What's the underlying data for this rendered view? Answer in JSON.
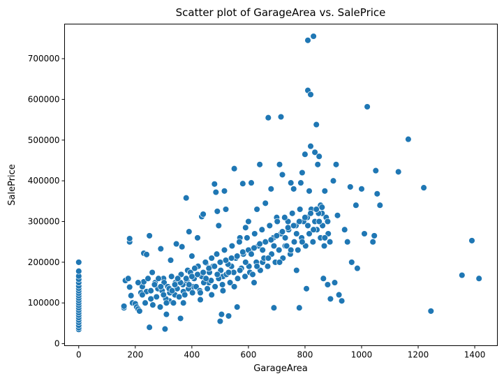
{
  "chart_data": {
    "type": "scatter",
    "title": "Scatter plot of GarageArea vs. SalePrice",
    "xlabel": "GarageArea",
    "ylabel": "SalePrice",
    "xlim": [
      -50,
      1480
    ],
    "ylim": [
      -5000,
      785000
    ],
    "xticks": [
      0,
      200,
      400,
      600,
      800,
      1000,
      1200,
      1400
    ],
    "xtick_labels": [
      "0",
      "200",
      "400",
      "600",
      "800",
      "1000",
      "1200",
      "1400"
    ],
    "yticks": [
      0,
      100000,
      200000,
      300000,
      400000,
      500000,
      600000,
      700000
    ],
    "ytick_labels": [
      "0",
      "100000",
      "200000",
      "300000",
      "400000",
      "500000",
      "600000",
      "700000"
    ],
    "grid": false,
    "marker_color": "#1f77b4",
    "marker_edge_color": "#ffffff",
    "points": [
      [
        0,
        35000
      ],
      [
        0,
        39000
      ],
      [
        0,
        45000
      ],
      [
        0,
        52000
      ],
      [
        0,
        58000
      ],
      [
        0,
        64000
      ],
      [
        0,
        70000
      ],
      [
        0,
        76000
      ],
      [
        0,
        82000
      ],
      [
        0,
        88000
      ],
      [
        0,
        94000
      ],
      [
        0,
        100000
      ],
      [
        0,
        106000
      ],
      [
        0,
        112000
      ],
      [
        0,
        118000
      ],
      [
        0,
        124000
      ],
      [
        0,
        130000
      ],
      [
        0,
        136000
      ],
      [
        0,
        142000
      ],
      [
        0,
        150000
      ],
      [
        0,
        158000
      ],
      [
        0,
        166000
      ],
      [
        0,
        178000
      ],
      [
        0,
        200000
      ],
      [
        160,
        88000
      ],
      [
        160,
        92000
      ],
      [
        165,
        155000
      ],
      [
        175,
        160000
      ],
      [
        180,
        250000
      ],
      [
        180,
        258000
      ],
      [
        180,
        139000
      ],
      [
        185,
        118000
      ],
      [
        190,
        100000
      ],
      [
        200,
        98000
      ],
      [
        205,
        90000
      ],
      [
        210,
        85000
      ],
      [
        215,
        80000
      ],
      [
        220,
        125000
      ],
      [
        225,
        140000
      ],
      [
        230,
        152000
      ],
      [
        230,
        222000
      ],
      [
        240,
        219000
      ],
      [
        240,
        128000
      ],
      [
        250,
        265000
      ],
      [
        250,
        40000
      ],
      [
        255,
        110000
      ],
      [
        260,
        175000
      ],
      [
        270,
        150000
      ],
      [
        280,
        135000
      ],
      [
        290,
        233000
      ],
      [
        300,
        160000
      ],
      [
        305,
        36000
      ],
      [
        310,
        72000
      ],
      [
        320,
        105000
      ],
      [
        325,
        205000
      ],
      [
        340,
        120000
      ],
      [
        345,
        245000
      ],
      [
        360,
        62000
      ],
      [
        365,
        238000
      ],
      [
        370,
        128000
      ],
      [
        380,
        358000
      ],
      [
        385,
        180000
      ],
      [
        390,
        275000
      ],
      [
        400,
        215000
      ],
      [
        405,
        140000
      ],
      [
        420,
        260000
      ],
      [
        430,
        108000
      ],
      [
        435,
        312000
      ],
      [
        440,
        318000
      ],
      [
        450,
        198000
      ],
      [
        460,
        150000
      ],
      [
        470,
        210000
      ],
      [
        480,
        392000
      ],
      [
        485,
        372000
      ],
      [
        490,
        325000
      ],
      [
        495,
        290000
      ],
      [
        500,
        55000
      ],
      [
        505,
        72000
      ],
      [
        510,
        165000
      ],
      [
        515,
        375000
      ],
      [
        520,
        330000
      ],
      [
        530,
        68000
      ],
      [
        540,
        190000
      ],
      [
        550,
        430000
      ],
      [
        560,
        90000
      ],
      [
        570,
        260000
      ],
      [
        580,
        393000
      ],
      [
        590,
        285000
      ],
      [
        600,
        300000
      ],
      [
        605,
        175000
      ],
      [
        610,
        395000
      ],
      [
        620,
        150000
      ],
      [
        630,
        330000
      ],
      [
        640,
        440000
      ],
      [
        650,
        200000
      ],
      [
        660,
        345000
      ],
      [
        670,
        555000
      ],
      [
        680,
        380000
      ],
      [
        690,
        88000
      ],
      [
        700,
        310000
      ],
      [
        710,
        440000
      ],
      [
        715,
        557000
      ],
      [
        720,
        415000
      ],
      [
        730,
        240000
      ],
      [
        740,
        300000
      ],
      [
        750,
        395000
      ],
      [
        760,
        380000
      ],
      [
        770,
        180000
      ],
      [
        780,
        88000
      ],
      [
        785,
        395000
      ],
      [
        790,
        420000
      ],
      [
        800,
        465000
      ],
      [
        805,
        135000
      ],
      [
        810,
        745000
      ],
      [
        810,
        622000
      ],
      [
        815,
        375000
      ],
      [
        820,
        485000
      ],
      [
        820,
        612000
      ],
      [
        830,
        755000
      ],
      [
        835,
        470000
      ],
      [
        840,
        538000
      ],
      [
        845,
        440000
      ],
      [
        850,
        460000
      ],
      [
        855,
        340000
      ],
      [
        860,
        320000
      ],
      [
        865,
        160000
      ],
      [
        870,
        375000
      ],
      [
        880,
        145000
      ],
      [
        890,
        110000
      ],
      [
        900,
        400000
      ],
      [
        905,
        150000
      ],
      [
        910,
        440000
      ],
      [
        915,
        315000
      ],
      [
        920,
        120000
      ],
      [
        930,
        105000
      ],
      [
        940,
        280000
      ],
      [
        950,
        250000
      ],
      [
        960,
        385000
      ],
      [
        965,
        200000
      ],
      [
        980,
        340000
      ],
      [
        985,
        185000
      ],
      [
        1000,
        380000
      ],
      [
        1010,
        270000
      ],
      [
        1020,
        582000
      ],
      [
        1040,
        250000
      ],
      [
        1045,
        265000
      ],
      [
        1050,
        425000
      ],
      [
        1055,
        368000
      ],
      [
        1065,
        340000
      ],
      [
        1130,
        422000
      ],
      [
        1165,
        502000
      ],
      [
        1220,
        383000
      ],
      [
        1245,
        80000
      ],
      [
        1355,
        168000
      ],
      [
        1390,
        253000
      ],
      [
        1415,
        160000
      ],
      [
        210,
        150000
      ],
      [
        225,
        120000
      ],
      [
        235,
        100000
      ],
      [
        245,
        160000
      ],
      [
        255,
        130000
      ],
      [
        262,
        95000
      ],
      [
        268,
        145000
      ],
      [
        275,
        115000
      ],
      [
        282,
        160000
      ],
      [
        288,
        90000
      ],
      [
        295,
        130000
      ],
      [
        302,
        150000
      ],
      [
        308,
        110000
      ],
      [
        315,
        140000
      ],
      [
        322,
        125000
      ],
      [
        328,
        165000
      ],
      [
        335,
        100000
      ],
      [
        342,
        150000
      ],
      [
        348,
        135000
      ],
      [
        355,
        115000
      ],
      [
        362,
        170000
      ],
      [
        368,
        145000
      ],
      [
        375,
        120000
      ],
      [
        382,
        155000
      ],
      [
        388,
        135000
      ],
      [
        395,
        175000
      ],
      [
        402,
        125000
      ],
      [
        408,
        160000
      ],
      [
        415,
        140000
      ],
      [
        422,
        190000
      ],
      [
        428,
        130000
      ],
      [
        435,
        165000
      ],
      [
        442,
        150000
      ],
      [
        448,
        200000
      ],
      [
        455,
        135000
      ],
      [
        462,
        175000
      ],
      [
        468,
        155000
      ],
      [
        475,
        190000
      ],
      [
        482,
        140000
      ],
      [
        488,
        220000
      ],
      [
        495,
        160000
      ],
      [
        502,
        180000
      ],
      [
        508,
        145000
      ],
      [
        515,
        230000
      ],
      [
        522,
        170000
      ],
      [
        528,
        195000
      ],
      [
        535,
        150000
      ],
      [
        542,
        240000
      ],
      [
        548,
        175000
      ],
      [
        555,
        210000
      ],
      [
        562,
        160000
      ],
      [
        568,
        250000
      ],
      [
        575,
        185000
      ],
      [
        582,
        220000
      ],
      [
        588,
        165000
      ],
      [
        595,
        260000
      ],
      [
        602,
        190000
      ],
      [
        608,
        230000
      ],
      [
        615,
        170000
      ],
      [
        622,
        270000
      ],
      [
        628,
        200000
      ],
      [
        635,
        240000
      ],
      [
        642,
        180000
      ],
      [
        648,
        280000
      ],
      [
        655,
        210000
      ],
      [
        662,
        250000
      ],
      [
        668,
        190000
      ],
      [
        675,
        290000
      ],
      [
        682,
        220000
      ],
      [
        688,
        260000
      ],
      [
        695,
        200000
      ],
      [
        702,
        300000
      ],
      [
        708,
        230000
      ],
      [
        715,
        270000
      ],
      [
        722,
        210000
      ],
      [
        728,
        310000
      ],
      [
        735,
        240000
      ],
      [
        742,
        280000
      ],
      [
        748,
        220000
      ],
      [
        755,
        320000
      ],
      [
        762,
        250000
      ],
      [
        768,
        290000
      ],
      [
        775,
        230000
      ],
      [
        782,
        330000
      ],
      [
        788,
        260000
      ],
      [
        795,
        300000
      ],
      [
        802,
        240000
      ],
      [
        808,
        310000
      ],
      [
        815,
        270000
      ],
      [
        822,
        330000
      ],
      [
        828,
        250000
      ],
      [
        835,
        300000
      ],
      [
        842,
        280000
      ],
      [
        848,
        320000
      ],
      [
        855,
        260000
      ],
      [
        862,
        290000
      ],
      [
        868,
        240000
      ],
      [
        875,
        310000
      ],
      [
        882,
        270000
      ],
      [
        888,
        250000
      ],
      [
        300,
        120000
      ],
      [
        320,
        135000
      ],
      [
        340,
        145000
      ],
      [
        360,
        150000
      ],
      [
        380,
        160000
      ],
      [
        400,
        165000
      ],
      [
        420,
        170000
      ],
      [
        440,
        175000
      ],
      [
        460,
        185000
      ],
      [
        480,
        190000
      ],
      [
        500,
        200000
      ],
      [
        520,
        205000
      ],
      [
        540,
        210000
      ],
      [
        560,
        215000
      ],
      [
        580,
        225000
      ],
      [
        600,
        230000
      ],
      [
        620,
        235000
      ],
      [
        640,
        245000
      ],
      [
        660,
        250000
      ],
      [
        680,
        255000
      ],
      [
        700,
        265000
      ],
      [
        720,
        275000
      ],
      [
        740,
        285000
      ],
      [
        760,
        290000
      ],
      [
        780,
        300000
      ],
      [
        800,
        310000
      ],
      [
        820,
        320000
      ],
      [
        840,
        330000
      ],
      [
        860,
        335000
      ],
      [
        880,
        300000
      ],
      [
        290,
        140000
      ],
      [
        310,
        100000
      ],
      [
        330,
        130000
      ],
      [
        350,
        160000
      ],
      [
        370,
        100000
      ],
      [
        390,
        145000
      ],
      [
        410,
        185000
      ],
      [
        430,
        125000
      ],
      [
        450,
        160000
      ],
      [
        470,
        120000
      ],
      [
        490,
        170000
      ],
      [
        510,
        130000
      ],
      [
        530,
        175000
      ],
      [
        550,
        140000
      ],
      [
        570,
        180000
      ],
      [
        590,
        200000
      ],
      [
        610,
        220000
      ],
      [
        630,
        190000
      ],
      [
        650,
        230000
      ],
      [
        670,
        210000
      ],
      [
        690,
        240000
      ],
      [
        710,
        200000
      ],
      [
        730,
        260000
      ],
      [
        750,
        230000
      ],
      [
        770,
        270000
      ],
      [
        790,
        250000
      ],
      [
        810,
        290000
      ],
      [
        830,
        280000
      ],
      [
        850,
        300000
      ],
      [
        870,
        260000
      ]
    ]
  }
}
